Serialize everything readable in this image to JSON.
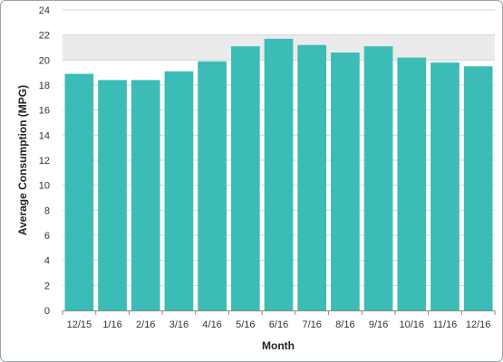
{
  "chart_data": {
    "type": "bar",
    "xlabel": "Month",
    "ylabel": "Average Consumption (MPG)",
    "categories": [
      "12/15",
      "1/16",
      "2/16",
      "3/16",
      "4/16",
      "5/16",
      "6/16",
      "7/16",
      "8/16",
      "9/16",
      "10/16",
      "11/16",
      "12/16"
    ],
    "values": [
      18.9,
      18.4,
      18.4,
      19.1,
      19.9,
      21.1,
      21.7,
      21.2,
      20.6,
      21.1,
      20.2,
      19.8,
      19.5
    ],
    "ylim": [
      0,
      24
    ],
    "yticks": [
      0,
      2,
      4,
      6,
      8,
      10,
      12,
      14,
      16,
      18,
      20,
      22,
      24
    ],
    "grid": true,
    "highlight_band": [
      20,
      22
    ],
    "colors": {
      "bar": "#3cbcb6",
      "band": "#ebebeb",
      "grid": "#d4d4d4",
      "axis": "#8a8a8a"
    }
  }
}
